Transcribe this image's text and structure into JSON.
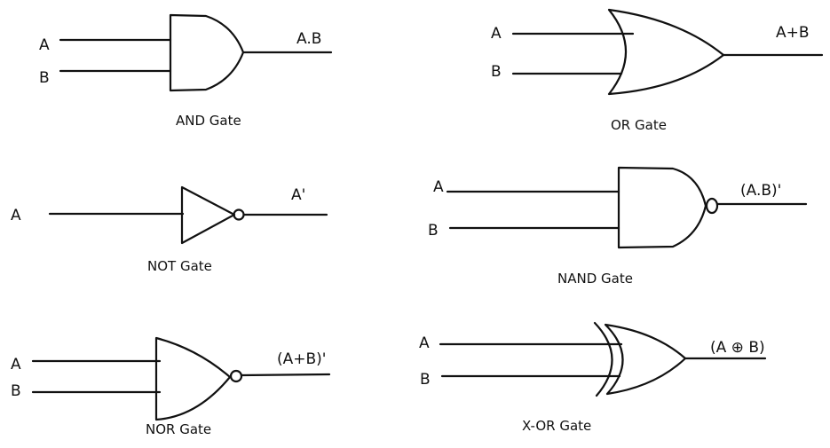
{
  "gates": [
    {
      "id": "and",
      "caption": "AND Gate",
      "inputs": [
        "A",
        "B"
      ],
      "output": "A.B"
    },
    {
      "id": "or",
      "caption": "OR Gate",
      "inputs": [
        "A",
        "B"
      ],
      "output": "A+B"
    },
    {
      "id": "not",
      "caption": "NOT Gate",
      "inputs": [
        "A"
      ],
      "output": "A'"
    },
    {
      "id": "nand",
      "caption": "NAND Gate",
      "inputs": [
        "A",
        "B"
      ],
      "output": "(A.B)'"
    },
    {
      "id": "nor",
      "caption": "NOR Gate",
      "inputs": [
        "A",
        "B"
      ],
      "output": "(A+B)'"
    },
    {
      "id": "xor",
      "caption": "X-OR Gate",
      "inputs": [
        "A",
        "B"
      ],
      "output": "(A ⊕ B)"
    }
  ]
}
